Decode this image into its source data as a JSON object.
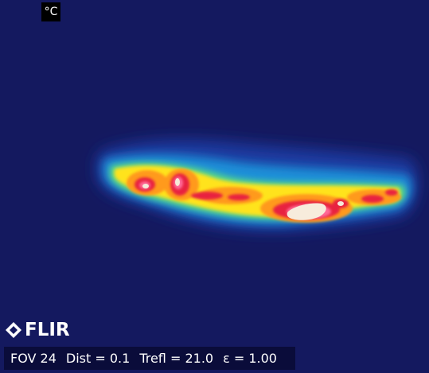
{
  "thermal_view": {
    "unit": "°C"
  },
  "brand": {
    "name": "FLIR",
    "logo_icon": "flir-diamond-icon"
  },
  "status": {
    "fov": "FOV 24",
    "dist": "Dist = 0.1",
    "trefl": "Trefl = 21.0",
    "emissivity": "ε = 1.00"
  },
  "colors": {
    "background": "#14195f",
    "palette": [
      "#14195f",
      "#1e3d9c",
      "#1e8fd6",
      "#33d0c8",
      "#9fe04a",
      "#ffe81a",
      "#ff8a18",
      "#e81e3c",
      "#ff5a8a",
      "#f4ead8"
    ]
  }
}
